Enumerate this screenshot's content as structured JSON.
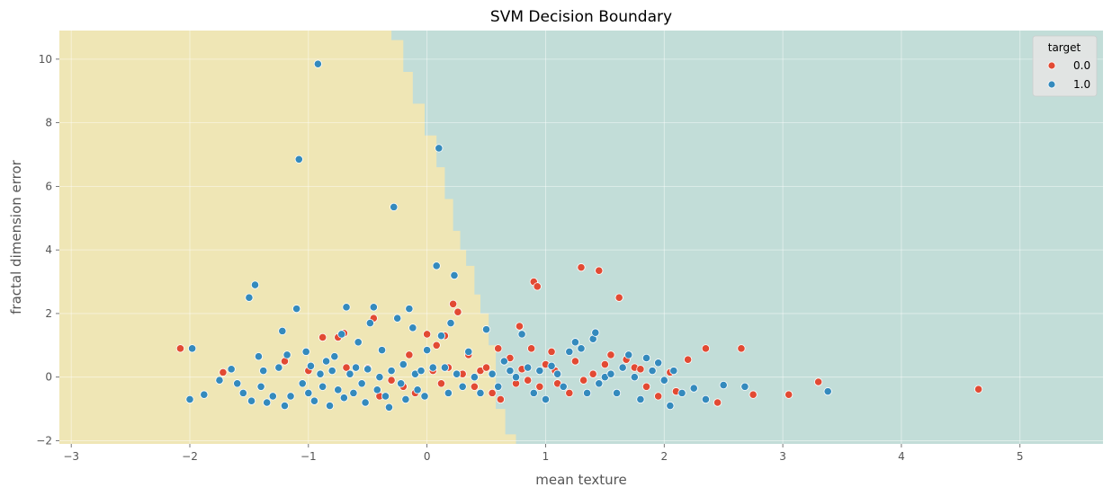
{
  "chart_data": {
    "type": "scatter",
    "title": "SVM Decision Boundary",
    "xlabel": "mean texture",
    "ylabel": "fractal dimension error",
    "xlim": [
      -3.1,
      5.7
    ],
    "ylim": [
      -2.1,
      10.9
    ],
    "xticks": [
      -3,
      -2,
      -1,
      0,
      1,
      2,
      3,
      4,
      5
    ],
    "yticks": [
      -2,
      0,
      2,
      4,
      6,
      8,
      10
    ],
    "grid": true,
    "legend": {
      "title": "target",
      "placement": "top-right"
    },
    "colors": {
      "class_0": "#e24a33",
      "class_1": "#348abd",
      "region_0": "#efe6b5",
      "region_1": "#c2ddd8"
    },
    "decision_boundary": [
      {
        "y": 10.9,
        "x": -0.3
      },
      {
        "y": 10.6,
        "x": -0.3
      },
      {
        "y": 10.6,
        "x": -0.2
      },
      {
        "y": 9.6,
        "x": -0.2
      },
      {
        "y": 9.6,
        "x": -0.12
      },
      {
        "y": 8.6,
        "x": -0.12
      },
      {
        "y": 8.6,
        "x": -0.02
      },
      {
        "y": 7.6,
        "x": -0.02
      },
      {
        "y": 7.6,
        "x": 0.08
      },
      {
        "y": 6.6,
        "x": 0.08
      },
      {
        "y": 6.6,
        "x": 0.15
      },
      {
        "y": 5.6,
        "x": 0.15
      },
      {
        "y": 5.6,
        "x": 0.22
      },
      {
        "y": 4.6,
        "x": 0.22
      },
      {
        "y": 4.6,
        "x": 0.28
      },
      {
        "y": 4.0,
        "x": 0.28
      },
      {
        "y": 4.0,
        "x": 0.33
      },
      {
        "y": 3.5,
        "x": 0.33
      },
      {
        "y": 3.5,
        "x": 0.4
      },
      {
        "y": 2.6,
        "x": 0.4
      },
      {
        "y": 2.6,
        "x": 0.45
      },
      {
        "y": 2.0,
        "x": 0.45
      },
      {
        "y": 2.0,
        "x": 0.52
      },
      {
        "y": 1.0,
        "x": 0.52
      },
      {
        "y": 1.0,
        "x": 0.58
      },
      {
        "y": -1.0,
        "x": 0.58
      },
      {
        "y": -1.0,
        "x": 0.66
      },
      {
        "y": -1.8,
        "x": 0.66
      },
      {
        "y": -1.8,
        "x": 0.75
      },
      {
        "y": -2.1,
        "x": 0.75
      }
    ],
    "series": [
      {
        "name": "0.0",
        "points": [
          [
            -2.08,
            0.9
          ],
          [
            -1.72,
            0.15
          ],
          [
            -1.2,
            0.5
          ],
          [
            -1.0,
            0.2
          ],
          [
            -0.88,
            1.25
          ],
          [
            -0.75,
            1.25
          ],
          [
            -0.7,
            1.38
          ],
          [
            -0.68,
            0.3
          ],
          [
            -0.5,
            0.28
          ],
          [
            -0.45,
            1.85
          ],
          [
            -0.4,
            -0.6
          ],
          [
            -0.3,
            -0.1
          ],
          [
            -0.2,
            -0.3
          ],
          [
            -0.15,
            0.7
          ],
          [
            -0.1,
            -0.5
          ],
          [
            0.0,
            1.35
          ],
          [
            0.05,
            0.2
          ],
          [
            0.08,
            1.0
          ],
          [
            0.12,
            -0.2
          ],
          [
            0.15,
            1.3
          ],
          [
            0.18,
            0.3
          ],
          [
            0.22,
            2.3
          ],
          [
            0.26,
            2.05
          ],
          [
            0.3,
            0.1
          ],
          [
            0.35,
            0.7
          ],
          [
            0.4,
            -0.3
          ],
          [
            0.45,
            0.2
          ],
          [
            0.5,
            0.3
          ],
          [
            0.55,
            -0.5
          ],
          [
            0.6,
            0.9
          ],
          [
            0.62,
            -0.7
          ],
          [
            0.7,
            0.6
          ],
          [
            0.75,
            -0.2
          ],
          [
            0.78,
            1.6
          ],
          [
            0.8,
            0.25
          ],
          [
            0.85,
            -0.1
          ],
          [
            0.88,
            0.9
          ],
          [
            0.9,
            3.0
          ],
          [
            0.93,
            2.85
          ],
          [
            0.95,
            -0.3
          ],
          [
            1.0,
            0.4
          ],
          [
            1.05,
            0.8
          ],
          [
            1.08,
            0.2
          ],
          [
            1.1,
            -0.2
          ],
          [
            1.2,
            -0.5
          ],
          [
            1.25,
            0.5
          ],
          [
            1.3,
            3.45
          ],
          [
            1.32,
            -0.1
          ],
          [
            1.4,
            0.1
          ],
          [
            1.45,
            3.35
          ],
          [
            1.5,
            0.4
          ],
          [
            1.55,
            0.7
          ],
          [
            1.62,
            2.5
          ],
          [
            1.68,
            0.55
          ],
          [
            1.75,
            0.3
          ],
          [
            1.8,
            0.25
          ],
          [
            1.85,
            -0.3
          ],
          [
            1.95,
            -0.6
          ],
          [
            2.05,
            0.15
          ],
          [
            2.1,
            -0.45
          ],
          [
            2.2,
            0.55
          ],
          [
            2.35,
            0.9
          ],
          [
            2.45,
            -0.8
          ],
          [
            2.65,
            0.9
          ],
          [
            2.75,
            -0.55
          ],
          [
            3.05,
            -0.55
          ],
          [
            3.3,
            -0.15
          ],
          [
            4.65,
            -0.38
          ]
        ]
      },
      {
        "name": "1.0",
        "points": [
          [
            -2.0,
            -0.7
          ],
          [
            -1.98,
            0.9
          ],
          [
            -1.88,
            -0.55
          ],
          [
            -1.75,
            -0.1
          ],
          [
            -1.65,
            0.25
          ],
          [
            -1.6,
            -0.2
          ],
          [
            -1.55,
            -0.5
          ],
          [
            -1.5,
            2.5
          ],
          [
            -1.48,
            -0.75
          ],
          [
            -1.45,
            2.9
          ],
          [
            -1.42,
            0.65
          ],
          [
            -1.4,
            -0.3
          ],
          [
            -1.38,
            0.2
          ],
          [
            -1.35,
            -0.8
          ],
          [
            -1.3,
            -0.6
          ],
          [
            -1.25,
            0.3
          ],
          [
            -1.22,
            1.45
          ],
          [
            -1.2,
            -0.9
          ],
          [
            -1.18,
            0.7
          ],
          [
            -1.15,
            -0.6
          ],
          [
            -1.1,
            2.15
          ],
          [
            -1.08,
            6.85
          ],
          [
            -1.05,
            -0.2
          ],
          [
            -1.02,
            0.8
          ],
          [
            -1.0,
            -0.5
          ],
          [
            -0.98,
            0.35
          ],
          [
            -0.95,
            -0.75
          ],
          [
            -0.92,
            9.85
          ],
          [
            -0.9,
            0.1
          ],
          [
            -0.88,
            -0.3
          ],
          [
            -0.85,
            0.5
          ],
          [
            -0.82,
            -0.9
          ],
          [
            -0.8,
            0.2
          ],
          [
            -0.78,
            0.65
          ],
          [
            -0.75,
            -0.4
          ],
          [
            -0.72,
            1.35
          ],
          [
            -0.7,
            -0.65
          ],
          [
            -0.68,
            2.2
          ],
          [
            -0.65,
            0.1
          ],
          [
            -0.62,
            -0.5
          ],
          [
            -0.6,
            0.3
          ],
          [
            -0.58,
            1.1
          ],
          [
            -0.55,
            -0.2
          ],
          [
            -0.52,
            -0.8
          ],
          [
            -0.5,
            0.25
          ],
          [
            -0.48,
            1.7
          ],
          [
            -0.45,
            2.2
          ],
          [
            -0.42,
            -0.4
          ],
          [
            -0.4,
            0.0
          ],
          [
            -0.38,
            0.85
          ],
          [
            -0.35,
            -0.6
          ],
          [
            -0.32,
            -0.95
          ],
          [
            -0.3,
            0.2
          ],
          [
            -0.28,
            5.35
          ],
          [
            -0.25,
            1.85
          ],
          [
            -0.22,
            -0.2
          ],
          [
            -0.2,
            0.4
          ],
          [
            -0.18,
            -0.7
          ],
          [
            -0.15,
            2.15
          ],
          [
            -0.12,
            1.55
          ],
          [
            -0.1,
            0.1
          ],
          [
            -0.08,
            -0.4
          ],
          [
            -0.05,
            0.2
          ],
          [
            -0.02,
            -0.6
          ],
          [
            0.0,
            0.85
          ],
          [
            0.05,
            0.3
          ],
          [
            0.08,
            3.5
          ],
          [
            0.1,
            7.2
          ],
          [
            0.12,
            1.3
          ],
          [
            0.15,
            0.3
          ],
          [
            0.18,
            -0.5
          ],
          [
            0.2,
            1.7
          ],
          [
            0.23,
            3.2
          ],
          [
            0.25,
            0.1
          ],
          [
            0.3,
            -0.3
          ],
          [
            0.35,
            0.8
          ],
          [
            0.4,
            0.0
          ],
          [
            0.45,
            -0.5
          ],
          [
            0.5,
            1.5
          ],
          [
            0.55,
            0.1
          ],
          [
            0.6,
            -0.3
          ],
          [
            0.65,
            0.5
          ],
          [
            0.7,
            0.2
          ],
          [
            0.75,
            0.0
          ],
          [
            0.8,
            1.35
          ],
          [
            0.85,
            0.3
          ],
          [
            0.9,
            -0.5
          ],
          [
            0.95,
            0.2
          ],
          [
            1.0,
            -0.7
          ],
          [
            1.05,
            0.35
          ],
          [
            1.1,
            0.1
          ],
          [
            1.15,
            -0.3
          ],
          [
            1.2,
            0.8
          ],
          [
            1.25,
            1.1
          ],
          [
            1.3,
            0.9
          ],
          [
            1.35,
            -0.5
          ],
          [
            1.4,
            1.2
          ],
          [
            1.42,
            1.4
          ],
          [
            1.45,
            -0.2
          ],
          [
            1.5,
            0.0
          ],
          [
            1.55,
            0.1
          ],
          [
            1.6,
            -0.5
          ],
          [
            1.65,
            0.3
          ],
          [
            1.7,
            0.7
          ],
          [
            1.75,
            0.0
          ],
          [
            1.8,
            -0.7
          ],
          [
            1.85,
            0.6
          ],
          [
            1.9,
            0.2
          ],
          [
            1.95,
            0.45
          ],
          [
            2.0,
            -0.1
          ],
          [
            2.05,
            -0.9
          ],
          [
            2.08,
            0.2
          ],
          [
            2.15,
            -0.5
          ],
          [
            2.25,
            -0.35
          ],
          [
            2.35,
            -0.7
          ],
          [
            2.5,
            -0.25
          ],
          [
            2.68,
            -0.3
          ],
          [
            3.38,
            -0.45
          ]
        ]
      }
    ]
  }
}
